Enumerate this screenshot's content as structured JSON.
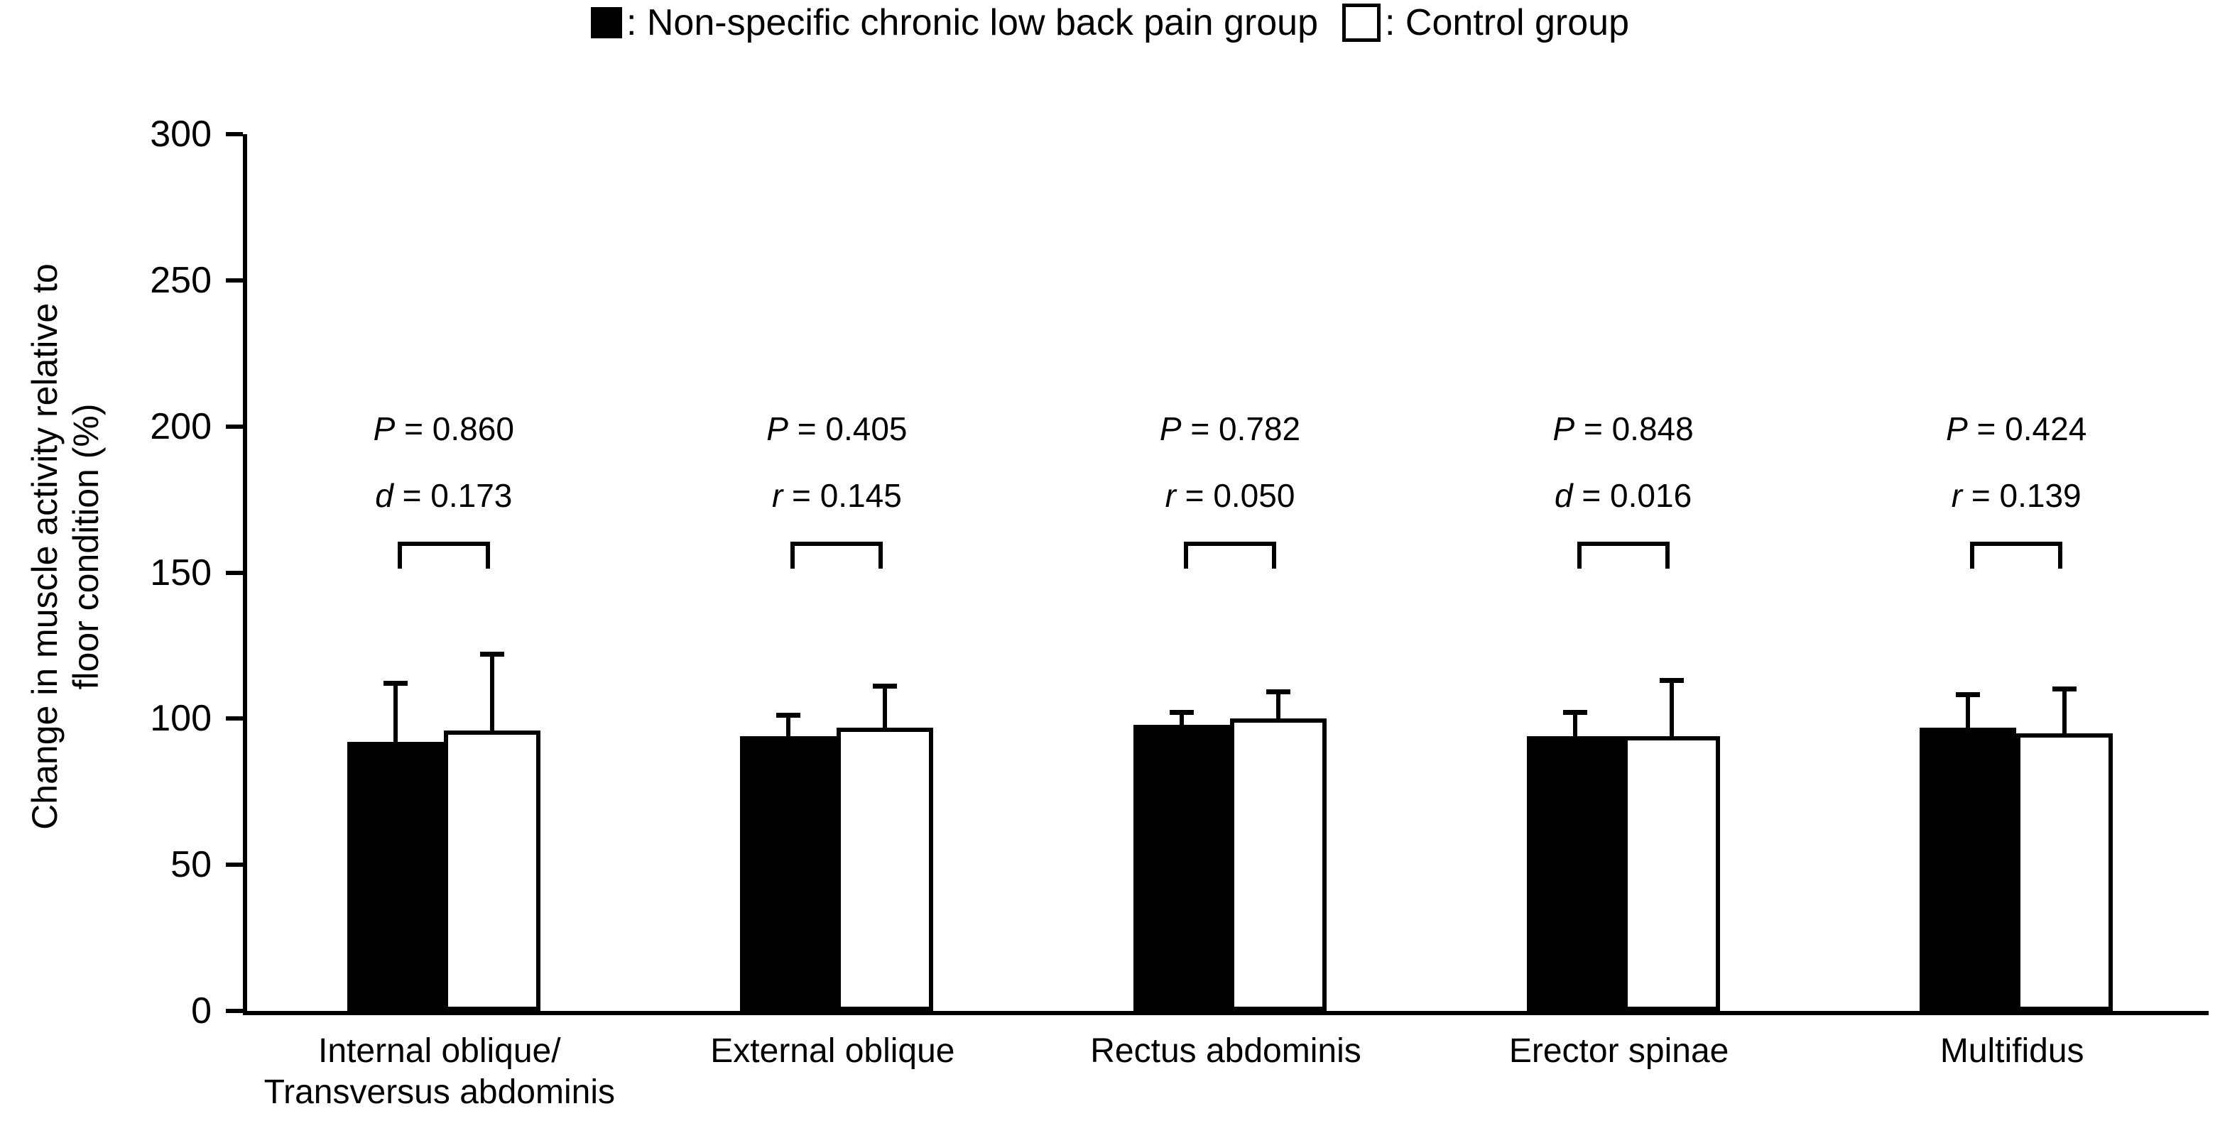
{
  "figure": {
    "legend": {
      "pain_text": ": Non-specific chronic low back pain group",
      "control_text": ": Control group"
    },
    "y_axis": {
      "title_line1": "Change in muscle activity relative to",
      "title_line2": "floor condition (%)"
    }
  },
  "chart_data": {
    "type": "bar",
    "title": "",
    "xlabel": "",
    "ylabel": "Change in muscle activity relative to floor condition (%)",
    "ylim": [
      0,
      300
    ],
    "yticks": [
      0,
      50,
      100,
      150,
      200,
      250,
      300
    ],
    "grid": false,
    "legend_position": "top-center",
    "error_bars": "upper-only",
    "categories": [
      "Internal oblique/\nTransversus abdominis",
      "External oblique",
      "Rectus abdominis",
      "Erector spinae",
      "Multifidus"
    ],
    "series": [
      {
        "name": "Non-specific chronic low back pain group",
        "fill": "#000000",
        "values": [
          92,
          94,
          98,
          94,
          97
        ],
        "error_upper_tops": [
          113,
          102,
          103,
          103,
          109
        ]
      },
      {
        "name": "Control group",
        "fill": "#ffffff",
        "values": [
          96,
          97,
          100,
          94,
          95
        ],
        "error_upper_tops": [
          123,
          112,
          110,
          114,
          111
        ]
      }
    ],
    "eq_sign": "=",
    "comparisons": [
      {
        "stat1_label": "P",
        "stat1_value": "0.860",
        "stat2_label": "d",
        "stat2_value": "0.173"
      },
      {
        "stat1_label": "P",
        "stat1_value": "0.405",
        "stat2_label": "r",
        "stat2_value": "0.145"
      },
      {
        "stat1_label": "P",
        "stat1_value": "0.782",
        "stat2_label": "r",
        "stat2_value": "0.050"
      },
      {
        "stat1_label": "P",
        "stat1_value": "0.848",
        "stat2_label": "d",
        "stat2_value": "0.016"
      },
      {
        "stat1_label": "P",
        "stat1_value": "0.424",
        "stat2_label": "r",
        "stat2_value": "0.139"
      }
    ]
  },
  "colors": {
    "pain_bar": "#000000",
    "control_bar": "#ffffff",
    "axis": "#000000",
    "background": "#ffffff"
  }
}
